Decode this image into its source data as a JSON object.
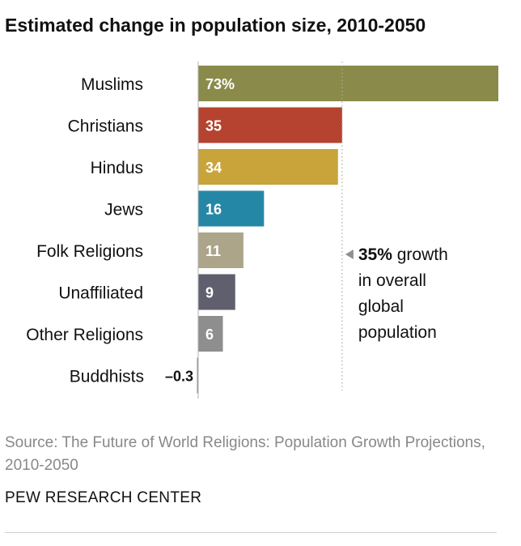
{
  "chart_data": {
    "type": "bar",
    "orientation": "horizontal",
    "title": "Estimated change in population size, 2010-2050",
    "categories": [
      "Muslims",
      "Christians",
      "Hindus",
      "Jews",
      "Folk Religions",
      "Unaffiliated",
      "Other Religions",
      "Buddhists"
    ],
    "values": [
      73,
      35,
      34,
      16,
      11,
      9,
      6,
      -0.3
    ],
    "value_labels": [
      "73%",
      "35",
      "34",
      "16",
      "11",
      "9",
      "6",
      "–0.3"
    ],
    "colors": [
      "#8a8b4a",
      "#b5432f",
      "#c9a43a",
      "#2587a6",
      "#aca58a",
      "#5f5f6e",
      "#8e8e8e",
      "#8e8e8e"
    ],
    "xlim": [
      0,
      73
    ],
    "reference_line": {
      "value": 35,
      "bold_label": "35%",
      "label_lines": [
        " growth",
        "in overall",
        "global",
        "population"
      ]
    },
    "xlabel": "",
    "ylabel": ""
  },
  "footer": {
    "source": "Source: The Future of World Religions: Population Growth Projections, 2010-2050",
    "credit": "PEW RESEARCH CENTER"
  }
}
